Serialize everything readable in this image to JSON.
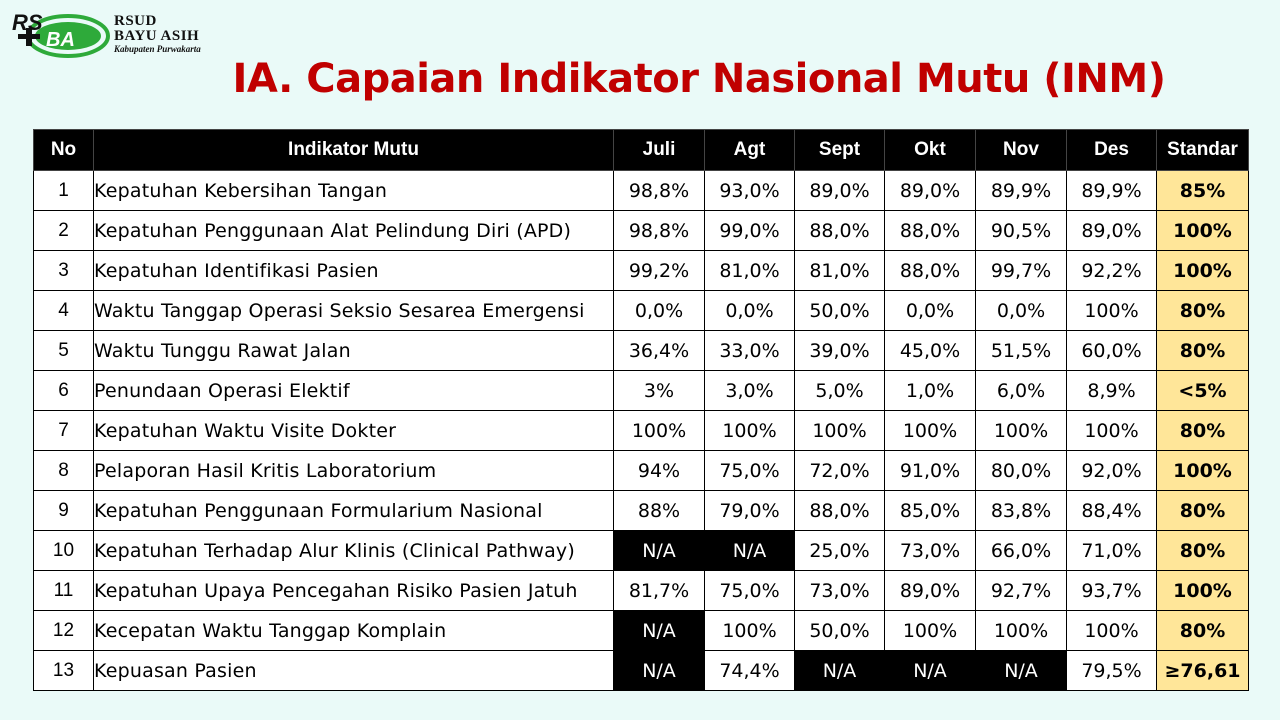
{
  "logo": {
    "line1": "RSUD",
    "line2": "BAYU ASIH",
    "line3": "Kabupaten Purwakarta"
  },
  "title": "IA. Capaian Indikator Nasional Mutu (INM)",
  "table": {
    "headers": [
      "No",
      "Indikator Mutu",
      "Juli",
      "Agt",
      "Sept",
      "Okt",
      "Nov",
      "Des",
      "Standar"
    ],
    "rows": [
      {
        "no": "1",
        "indikator": "Kepatuhan Kebersihan Tangan",
        "values": [
          "98,8%",
          "93,0%",
          "89,0%",
          "89,0%",
          "89,9%",
          "89,9%"
        ],
        "standar": "85%"
      },
      {
        "no": "2",
        "indikator": "Kepatuhan Penggunaan Alat Pelindung Diri (APD)",
        "values": [
          "98,8%",
          "99,0%",
          "88,0%",
          "88,0%",
          "90,5%",
          "89,0%"
        ],
        "standar": "100%"
      },
      {
        "no": "3",
        "indikator": "Kepatuhan Identifikasi Pasien",
        "values": [
          "99,2%",
          "81,0%",
          "81,0%",
          "88,0%",
          "99,7%",
          "92,2%"
        ],
        "standar": "100%"
      },
      {
        "no": "4",
        "indikator": "Waktu Tanggap Operasi Seksio Sesarea Emergensi",
        "values": [
          "0,0%",
          "0,0%",
          "50,0%",
          "0,0%",
          "0,0%",
          "100%"
        ],
        "standar": "80%"
      },
      {
        "no": "5",
        "indikator": "Waktu Tunggu Rawat Jalan",
        "values": [
          "36,4%",
          "33,0%",
          "39,0%",
          "45,0%",
          "51,5%",
          "60,0%"
        ],
        "standar": "80%"
      },
      {
        "no": "6",
        "indikator": "Penundaan Operasi Elektif",
        "values": [
          "3%",
          "3,0%",
          "5,0%",
          "1,0%",
          "6,0%",
          "8,9%"
        ],
        "standar": "<5%"
      },
      {
        "no": "7",
        "indikator": "Kepatuhan Waktu Visite Dokter",
        "values": [
          "100%",
          "100%",
          "100%",
          "100%",
          "100%",
          "100%"
        ],
        "standar": "80%"
      },
      {
        "no": "8",
        "indikator": "Pelaporan Hasil Kritis Laboratorium",
        "values": [
          "94%",
          "75,0%",
          "72,0%",
          "91,0%",
          "80,0%",
          "92,0%"
        ],
        "standar": "100%"
      },
      {
        "no": "9",
        "indikator": "Kepatuhan Penggunaan Formularium Nasional",
        "values": [
          "88%",
          "79,0%",
          "88,0%",
          "85,0%",
          "83,8%",
          "88,4%"
        ],
        "standar": "80%"
      },
      {
        "no": "10",
        "indikator": "Kepatuhan Terhadap Alur Klinis (Clinical Pathway)",
        "values": [
          "N/A",
          "N/A",
          "25,0%",
          "73,0%",
          "66,0%",
          "71,0%"
        ],
        "standar": "80%"
      },
      {
        "no": "11",
        "indikator": "Kepatuhan Upaya Pencegahan Risiko Pasien Jatuh",
        "values": [
          "81,7%",
          "75,0%",
          "73,0%",
          "89,0%",
          "92,7%",
          "93,7%"
        ],
        "standar": "100%"
      },
      {
        "no": "12",
        "indikator": "Kecepatan Waktu Tanggap Komplain",
        "values": [
          "N/A",
          "100%",
          "50,0%",
          "100%",
          "100%",
          "100%"
        ],
        "standar": "80%"
      },
      {
        "no": "13",
        "indikator": "Kepuasan Pasien",
        "values": [
          "N/A",
          "74,4%",
          "N/A",
          "N/A",
          "N/A",
          "79,5%"
        ],
        "standar": "≥76,61"
      }
    ]
  },
  "colors": {
    "title": "#c00000",
    "header_bg": "#000000",
    "standar_bg": "#ffe699",
    "na_bg": "#000000",
    "background": "#eafaf8",
    "logo_green": "#2eaa3a"
  }
}
